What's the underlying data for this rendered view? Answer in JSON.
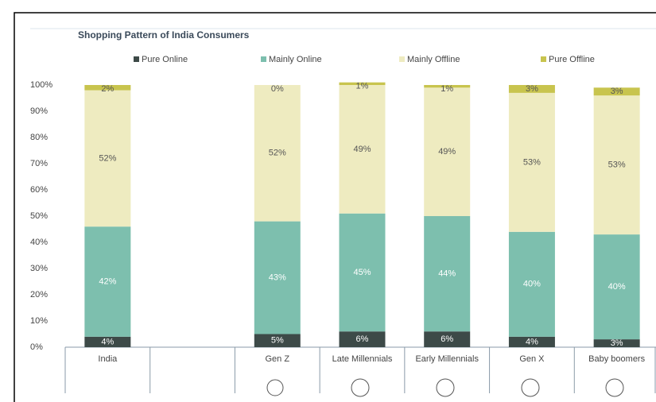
{
  "chart_data": {
    "type": "stacked_bar",
    "title": "Shopping Pattern of India Consumers",
    "categories": [
      "India",
      null,
      "Gen Z",
      "Late Millennials",
      "Early Millennials",
      "Gen X",
      "Baby boomers"
    ],
    "series": [
      {
        "name": "Pure Online",
        "color": "#3d4a48",
        "values": [
          4,
          null,
          5,
          6,
          6,
          4,
          3
        ],
        "value_labels": [
          "4%",
          null,
          "5%",
          "6%",
          "6%",
          "4%",
          "3%"
        ]
      },
      {
        "name": "Mainly Online",
        "color": "#7dbfae",
        "values": [
          42,
          null,
          43,
          45,
          44,
          40,
          40
        ],
        "value_labels": [
          "42%",
          null,
          "43%",
          "45%",
          "44%",
          "40%",
          "40%"
        ]
      },
      {
        "name": "Mainly Offline",
        "color": "#eeebc0",
        "values": [
          52,
          null,
          52,
          49,
          49,
          53,
          53
        ],
        "value_labels": [
          "52%",
          null,
          "52%",
          "49%",
          "49%",
          "53%",
          "53%"
        ]
      },
      {
        "name": "Pure Offline",
        "color": "#c8c44e",
        "values": [
          2,
          null,
          0,
          1,
          1,
          3,
          3
        ],
        "value_labels": [
          "2%",
          null,
          "0%",
          "1%",
          "1%",
          "3%",
          "3%"
        ]
      }
    ],
    "ylim": [
      0,
      100
    ],
    "yticks": [
      {
        "value": 0,
        "label": "0%"
      },
      {
        "value": 10,
        "label": "10%"
      },
      {
        "value": 20,
        "label": "20%"
      },
      {
        "value": 30,
        "label": "30%"
      },
      {
        "value": 40,
        "label": "40%"
      },
      {
        "value": 50,
        "label": "50%"
      },
      {
        "value": 60,
        "label": "60%"
      },
      {
        "value": 70,
        "label": "70%"
      },
      {
        "value": 80,
        "label": "80%"
      },
      {
        "value": 90,
        "label": "90%"
      },
      {
        "value": 100,
        "label": "100%"
      }
    ],
    "legend": "top"
  }
}
